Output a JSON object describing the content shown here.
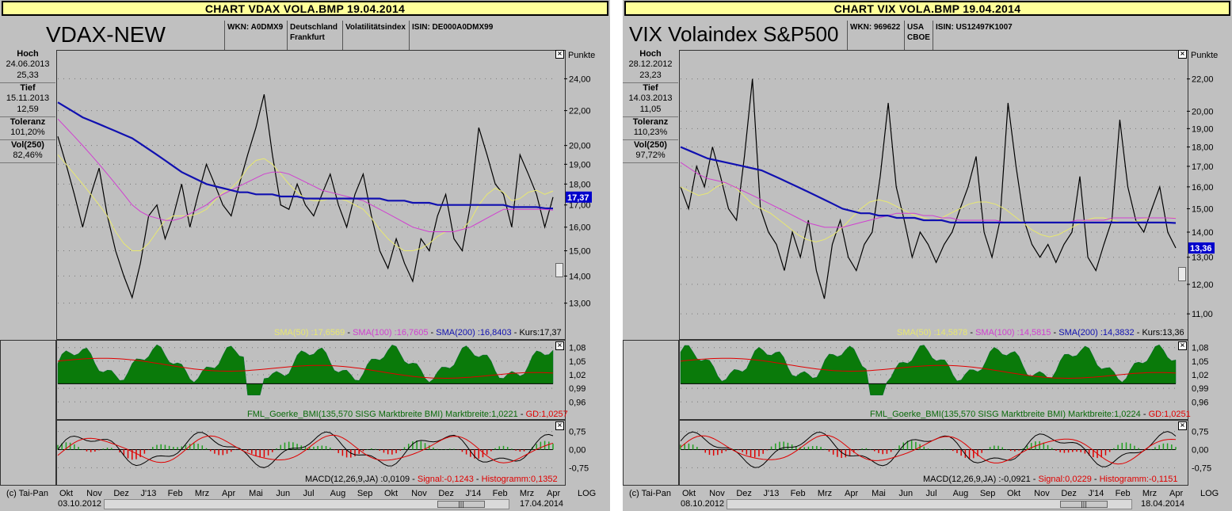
{
  "charts": [
    {
      "window_title": "CHART  VDAX  VOLA.BMP 19.04.2014",
      "instrument": "VDAX-NEW",
      "wkn": "WKN: A0DMX9",
      "exchange": [
        "Deutschland",
        "Frankfurt"
      ],
      "category": "Volatilitätsindex",
      "isin": "ISIN: DE000A0DMX99",
      "stats": {
        "hoch_label": "Hoch",
        "hoch_date": "24.06.2013",
        "hoch_value": "25,33",
        "tief_label": "Tief",
        "tief_date": "15.11.2013",
        "tief_value": "12,59",
        "toleranz_label": "Toleranz",
        "toleranz_value": "101,20%",
        "vol_label": "Vol(250)",
        "vol_value": "82,46%"
      },
      "unit": "Punkte",
      "current_price_tag": "17,37",
      "legend": {
        "sma50": "SMA(50) :17,6569",
        "sma100": "SMA(100) :16,7605",
        "sma200": "SMA(200) :16,8403",
        "kurs": "Kurs:17,37"
      },
      "bmi_legend": {
        "main": "FML_Goerke_BMI(135,570 SISG Marktbreite BMI) Marktbreite:1,0221",
        "gd": "GD:1,0257"
      },
      "macd_legend": {
        "main": "MACD(12,26,9,JA) :0,0109",
        "signal": "Signal:-0,1243",
        "hist": "Histogramm:0,1352"
      },
      "price_ticks": [
        "24,00",
        "22,00",
        "20,00",
        "19,00",
        "18,00",
        "17,00",
        "16,00",
        "15,00",
        "14,00",
        "13,00"
      ],
      "bmi_ticks": [
        "1,08",
        "1,05",
        "1,02",
        "0,99",
        "0,96"
      ],
      "macd_ticks": [
        "0,75",
        "0,00",
        "-0,75"
      ],
      "months": [
        "Okt",
        "Nov",
        "Dez",
        "J'13",
        "Feb",
        "Mrz",
        "Apr",
        "Mai",
        "Jun",
        "Jul",
        "Aug",
        "Sep",
        "Okt",
        "Nov",
        "Dez",
        "J'14",
        "Feb",
        "Mrz",
        "Apr"
      ],
      "copyright": "(c) Tai-Pan",
      "start_date": "03.10.2012",
      "end_date": "17.04.2014",
      "scale_mode": "LOG"
    },
    {
      "window_title": "CHART  VIX  VOLA.BMP 19.04.2014",
      "instrument": "VIX Volaindex S&P500",
      "wkn": "WKN: 969622",
      "exchange": [
        "USA",
        "CBOE"
      ],
      "category": "",
      "isin": "ISIN: US12497K1007",
      "stats": {
        "hoch_label": "Hoch",
        "hoch_date": "28.12.2012",
        "hoch_value": "23,23",
        "tief_label": "Tief",
        "tief_date": "14.03.2013",
        "tief_value": "11,05",
        "toleranz_label": "Toleranz",
        "toleranz_value": "110,23%",
        "vol_label": "Vol(250)",
        "vol_value": "97,72%"
      },
      "unit": "Punkte",
      "current_price_tag": "13,36",
      "legend": {
        "sma50": "SMA(50) :14,5878",
        "sma100": "SMA(100) :14,5815",
        "sma200": "SMA(200) :14,3832",
        "kurs": "Kurs:13,36"
      },
      "bmi_legend": {
        "main": "FML_Goerke_BMI(135,570 SISG Marktbreite BMI) Marktbreite:1,0224",
        "gd": "GD:1,0251"
      },
      "macd_legend": {
        "main": "MACD(12,26,9,JA) :-0,0921",
        "signal": "Signal:0,0229",
        "hist": "Histogramm:-0,1151"
      },
      "price_ticks": [
        "22,00",
        "20,00",
        "19,00",
        "18,00",
        "17,00",
        "16,00",
        "15,00",
        "14,00",
        "13,00",
        "12,00",
        "11,00"
      ],
      "bmi_ticks": [
        "1,08",
        "1,05",
        "1,02",
        "0,99",
        "0,96"
      ],
      "macd_ticks": [
        "0,75",
        "0,00",
        "-0,75"
      ],
      "months": [
        "Okt",
        "Nov",
        "Dez",
        "J'13",
        "Feb",
        "Mrz",
        "Apr",
        "Mai",
        "Jun",
        "Jul",
        "Aug",
        "Sep",
        "Okt",
        "Nov",
        "Dez",
        "J'14",
        "Feb",
        "Mrz",
        "Apr"
      ],
      "copyright": "(c) Tai-Pan",
      "start_date": "08.10.2012",
      "end_date": "18.04.2014",
      "scale_mode": "LOG"
    }
  ],
  "chart_data": [
    {
      "type": "line",
      "title": "VDAX-NEW",
      "ylabel": "Punkte",
      "y_scale": "log",
      "ylim": [
        12.2,
        25.8
      ],
      "x_range": [
        "03.10.2012",
        "17.04.2014"
      ],
      "x_ticks": [
        "Okt",
        "Nov",
        "Dez",
        "J'13",
        "Feb",
        "Mrz",
        "Apr",
        "Mai",
        "Jun",
        "Jul",
        "Aug",
        "Sep",
        "Okt",
        "Nov",
        "Dez",
        "J'14",
        "Feb",
        "Mrz",
        "Apr"
      ],
      "series": [
        {
          "name": "Kurs",
          "values": [
            20.5,
            19.0,
            17.5,
            16.0,
            17.5,
            18.8,
            16.5,
            15.0,
            14.0,
            13.2,
            14.5,
            16.5,
            17.0,
            15.5,
            16.5,
            18.0,
            16.0,
            17.5,
            19.0,
            18.0,
            17.0,
            16.5,
            18.0,
            19.5,
            21.0,
            23.0,
            19.5,
            17.0,
            16.8,
            18.0,
            17.0,
            16.5,
            17.5,
            18.5,
            17.0,
            16.0,
            17.5,
            18.5,
            16.5,
            15.0,
            14.3,
            15.5,
            14.5,
            13.8,
            15.5,
            15.0,
            16.5,
            17.5,
            15.5,
            15.0,
            17.0,
            21.0,
            19.5,
            18.0,
            17.5,
            16.0,
            19.5,
            18.5,
            17.5,
            16.0,
            17.37
          ]
        },
        {
          "name": "SMA(50)",
          "values": [
            19.5,
            19.0,
            18.5,
            18.0,
            17.5,
            17.0,
            16.5,
            15.8,
            15.3,
            15.0,
            15.0,
            15.3,
            15.8,
            16.3,
            16.5,
            16.5,
            16.5,
            16.6,
            16.8,
            17.2,
            17.6,
            17.8,
            18.2,
            18.8,
            19.2,
            19.3,
            19.0,
            18.5,
            18.0,
            17.6,
            17.3,
            17.2,
            17.2,
            17.3,
            17.3,
            17.2,
            17.0,
            16.8,
            16.4,
            15.9,
            15.5,
            15.2,
            15.0,
            15.0,
            15.1,
            15.3,
            15.6,
            15.8,
            15.8,
            15.9,
            16.3,
            17.0,
            17.5,
            17.8,
            17.6,
            17.2,
            17.3,
            17.6,
            17.7,
            17.5,
            17.66
          ]
        },
        {
          "name": "SMA(100)",
          "values": [
            21.5,
            21.0,
            20.5,
            20.0,
            19.5,
            19.0,
            18.5,
            18.0,
            17.5,
            17.0,
            16.7,
            16.5,
            16.4,
            16.3,
            16.3,
            16.4,
            16.6,
            16.8,
            17.0,
            17.3,
            17.5,
            17.7,
            17.9,
            18.1,
            18.3,
            18.5,
            18.6,
            18.6,
            18.5,
            18.3,
            18.1,
            17.9,
            17.7,
            17.6,
            17.5,
            17.4,
            17.3,
            17.2,
            17.0,
            16.8,
            16.6,
            16.4,
            16.2,
            16.0,
            15.9,
            15.8,
            15.8,
            15.8,
            15.8,
            15.9,
            16.0,
            16.2,
            16.4,
            16.6,
            16.8,
            16.8,
            16.8,
            16.8,
            16.8,
            16.8,
            16.76
          ]
        },
        {
          "name": "SMA(200)",
          "values": [
            22.5,
            22.2,
            21.9,
            21.6,
            21.4,
            21.2,
            21.0,
            20.8,
            20.6,
            20.4,
            20.1,
            19.8,
            19.5,
            19.2,
            18.9,
            18.6,
            18.4,
            18.2,
            18.0,
            17.9,
            17.8,
            17.7,
            17.6,
            17.6,
            17.5,
            17.5,
            17.5,
            17.4,
            17.4,
            17.4,
            17.3,
            17.3,
            17.3,
            17.3,
            17.3,
            17.3,
            17.3,
            17.3,
            17.3,
            17.3,
            17.2,
            17.2,
            17.2,
            17.1,
            17.1,
            17.1,
            17.0,
            17.0,
            17.0,
            17.0,
            17.0,
            17.0,
            17.0,
            17.0,
            17.0,
            16.9,
            16.9,
            16.9,
            16.9,
            16.85,
            16.84
          ]
        }
      ],
      "reference_levels": {
        "current": 17.37
      }
    },
    {
      "type": "line",
      "title": "VIX Volaindex S&P500",
      "ylabel": "Punkte",
      "y_scale": "log",
      "ylim": [
        10.6,
        23.8
      ],
      "x_range": [
        "08.10.2012",
        "18.04.2014"
      ],
      "x_ticks": [
        "Okt",
        "Nov",
        "Dez",
        "J'13",
        "Feb",
        "Mrz",
        "Apr",
        "Mai",
        "Jun",
        "Jul",
        "Aug",
        "Sep",
        "Okt",
        "Nov",
        "Dez",
        "J'14",
        "Feb",
        "Mrz",
        "Apr"
      ],
      "series": [
        {
          "name": "Kurs",
          "values": [
            16.0,
            15.0,
            17.0,
            16.0,
            18.0,
            16.5,
            15.0,
            14.5,
            17.5,
            22.0,
            15.0,
            14.0,
            13.5,
            12.5,
            14.0,
            13.0,
            14.5,
            12.5,
            11.5,
            13.5,
            14.5,
            13.0,
            12.5,
            13.5,
            14.0,
            16.5,
            20.5,
            16.0,
            14.5,
            13.0,
            14.0,
            13.5,
            12.8,
            13.5,
            14.0,
            15.0,
            16.0,
            17.5,
            14.0,
            13.0,
            14.5,
            20.5,
            17.0,
            14.5,
            13.5,
            13.0,
            13.5,
            12.8,
            13.5,
            14.0,
            16.5,
            13.0,
            12.5,
            13.5,
            14.5,
            19.5,
            16.0,
            14.5,
            14.0,
            15.0,
            16.0,
            14.0,
            13.36
          ]
        },
        {
          "name": "SMA(50)",
          "values": [
            16.0,
            15.8,
            15.6,
            15.7,
            16.0,
            16.2,
            16.0,
            15.6,
            15.2,
            15.0,
            14.8,
            14.5,
            14.2,
            13.9,
            13.7,
            13.6,
            13.7,
            13.9,
            14.2,
            14.6,
            15.0,
            15.3,
            15.4,
            15.3,
            15.1,
            14.9,
            14.7,
            14.6,
            14.5,
            14.6,
            14.8,
            15.0,
            15.2,
            15.3,
            15.3,
            15.2,
            15.0,
            14.7,
            14.4,
            14.1,
            13.9,
            13.8,
            13.9,
            14.1,
            14.3,
            14.5,
            14.6,
            14.6,
            14.5,
            14.4,
            14.4,
            14.5,
            14.6,
            14.6,
            14.6,
            14.59
          ]
        },
        {
          "name": "SMA(100)",
          "values": [
            17.2,
            16.9,
            16.6,
            16.4,
            16.3,
            16.2,
            16.0,
            15.8,
            15.6,
            15.4,
            15.2,
            15.0,
            14.8,
            14.6,
            14.4,
            14.3,
            14.2,
            14.2,
            14.2,
            14.3,
            14.4,
            14.5,
            14.6,
            14.7,
            14.8,
            14.8,
            14.8,
            14.7,
            14.7,
            14.6,
            14.6,
            14.5,
            14.5,
            14.5,
            14.5,
            14.5,
            14.4,
            14.4,
            14.4,
            14.4,
            14.4,
            14.4,
            14.4,
            14.4,
            14.5,
            14.5,
            14.5,
            14.5,
            14.6,
            14.6,
            14.6,
            14.6,
            14.6,
            14.6,
            14.6,
            14.58
          ]
        },
        {
          "name": "SMA(200)",
          "values": [
            18.0,
            17.8,
            17.6,
            17.4,
            17.3,
            17.2,
            17.1,
            17.0,
            16.9,
            16.8,
            16.6,
            16.4,
            16.2,
            16.0,
            15.8,
            15.6,
            15.4,
            15.2,
            15.0,
            14.9,
            14.8,
            14.8,
            14.7,
            14.7,
            14.6,
            14.6,
            14.6,
            14.5,
            14.5,
            14.5,
            14.4,
            14.4,
            14.4,
            14.4,
            14.4,
            14.4,
            14.4,
            14.4,
            14.4,
            14.4,
            14.4,
            14.4,
            14.4,
            14.4,
            14.4,
            14.4,
            14.4,
            14.4,
            14.4,
            14.4,
            14.4,
            14.4,
            14.4,
            14.4,
            14.4,
            14.38
          ]
        }
      ],
      "reference_levels": {
        "current": 13.36
      }
    }
  ],
  "colors": {
    "sma50": "#e8e870",
    "sma100": "#d040d0",
    "sma200": "#1010b0",
    "kurs": "#000000",
    "bmi_fill": "#0a7a0a",
    "bmi_neg": "#c80000",
    "gd": "#e00000",
    "macd": "#000000",
    "signal": "#e00000",
    "hist_pos": "#20a020",
    "hist_neg": "#e00000",
    "price_tag": "#0000cc",
    "background": "#bfbfbf"
  }
}
